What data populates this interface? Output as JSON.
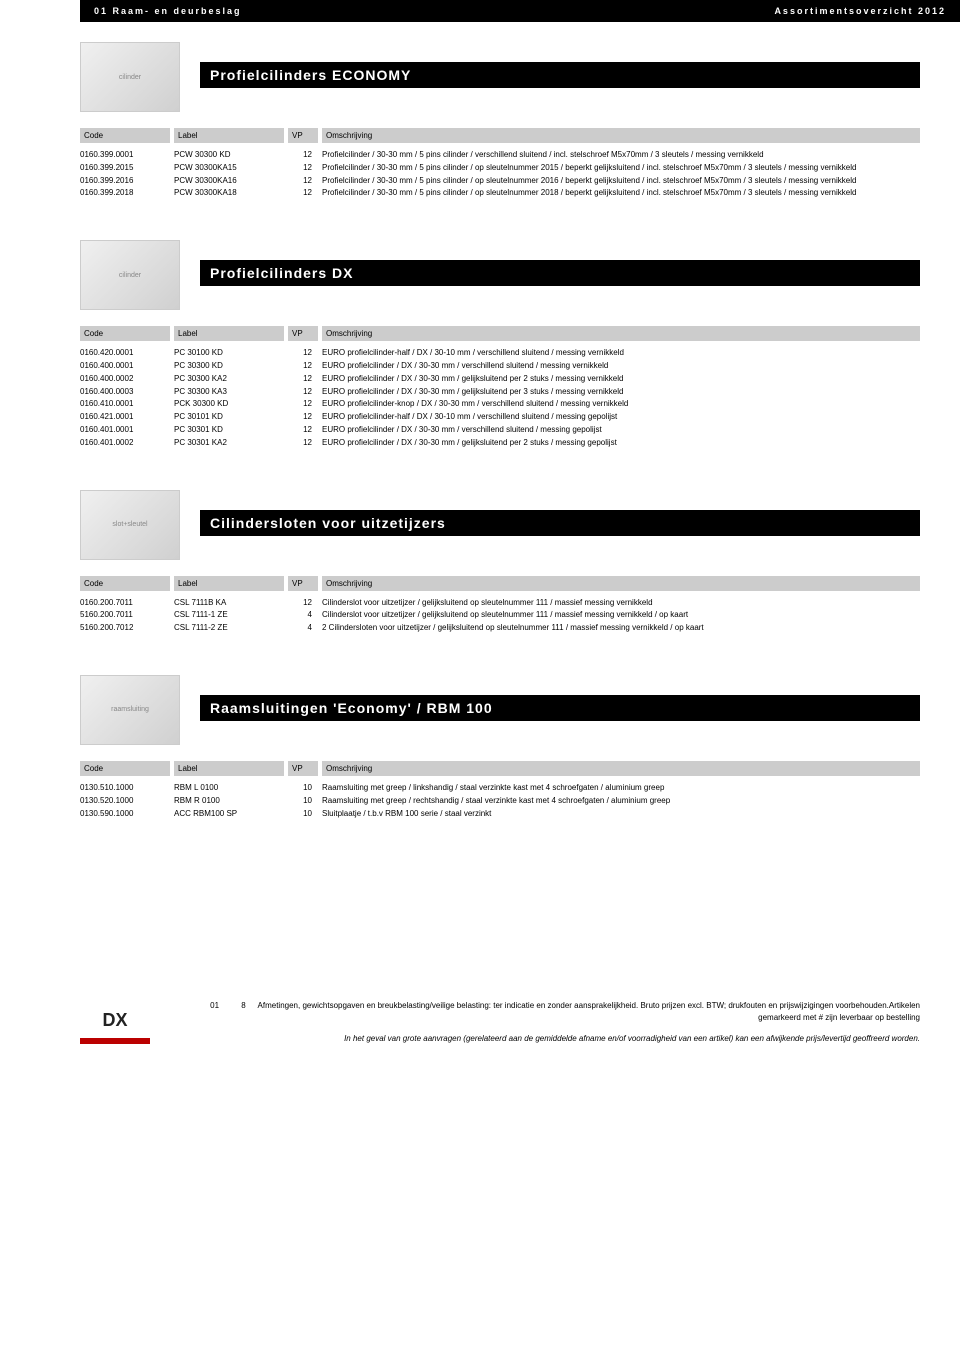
{
  "header": {
    "left": "01 Raam- en deurbeslag",
    "right": "Assortimentsoverzicht 2012"
  },
  "columns": {
    "code": "Code",
    "label": "Label",
    "vp": "VP",
    "desc": "Omschrijving"
  },
  "sections": [
    {
      "title": "Profielcilinders ECONOMY",
      "thumb": "cilinder",
      "rows": [
        {
          "code": "0160.399.0001",
          "label": "PCW 30300 KD",
          "qty": "12",
          "desc": "Profielcilinder / 30-30 mm / 5 pins cilinder / verschillend sluitend / incl. stelschroef M5x70mm / 3 sleutels / messing vernikkeld"
        },
        {
          "code": "0160.399.2015",
          "label": "PCW 30300KA15",
          "qty": "12",
          "desc": "Profielcilinder / 30-30 mm / 5 pins cilinder / op sleutelnummer 2015 / beperkt gelijksluitend / incl. stelschroef M5x70mm / 3 sleutels / messing vernikkeld"
        },
        {
          "code": "0160.399.2016",
          "label": "PCW 30300KA16",
          "qty": "12",
          "desc": "Profielcilinder / 30-30 mm / 5 pins cilinder / op sleutelnummer 2016 / beperkt gelijksluitend / incl. stelschroef M5x70mm / 3 sleutels / messing vernikkeld"
        },
        {
          "code": "0160.399.2018",
          "label": "PCW 30300KA18",
          "qty": "12",
          "desc": "Profielcilinder / 30-30 mm / 5 pins cilinder / op sleutelnummer 2018 / beperkt gelijksluitend / incl. stelschroef M5x70mm / 3 sleutels / messing vernikkeld"
        }
      ]
    },
    {
      "title": "Profielcilinders DX",
      "thumb": "cilinder",
      "rows": [
        {
          "code": "0160.420.0001",
          "label": "PC 30100 KD",
          "qty": "12",
          "desc": "EURO profielcilinder-half / DX / 30-10 mm / verschillend sluitend / messing vernikkeld"
        },
        {
          "code": "0160.400.0001",
          "label": "PC 30300 KD",
          "qty": "12",
          "desc": "EURO profielcilinder / DX / 30-30 mm / verschillend sluitend / messing vernikkeld"
        },
        {
          "code": "0160.400.0002",
          "label": "PC 30300 KA2",
          "qty": "12",
          "desc": "EURO profielcilinder / DX / 30-30 mm / gelijksluitend per 2 stuks / messing vernikkeld"
        },
        {
          "code": "0160.400.0003",
          "label": "PC 30300 KA3",
          "qty": "12",
          "desc": "EURO profielcilinder / DX / 30-30 mm / gelijksluitend per 3 stuks / messing vernikkeld"
        },
        {
          "code": "0160.410.0001",
          "label": "PCK 30300 KD",
          "qty": "12",
          "desc": "EURO profielcilinder-knop / DX / 30-30 mm / verschillend sluitend / messing vernikkeld"
        },
        {
          "code": "0160.421.0001",
          "label": "PC 30101 KD",
          "qty": "12",
          "desc": "EURO profielcilinder-half / DX / 30-10 mm / verschillend sluitend / messing gepolijst"
        },
        {
          "code": "0160.401.0001",
          "label": "PC 30301 KD",
          "qty": "12",
          "desc": "EURO profielcilinder / DX / 30-30 mm / verschillend sluitend / messing gepolijst"
        },
        {
          "code": "0160.401.0002",
          "label": "PC 30301 KA2",
          "qty": "12",
          "desc": "EURO profielcilinder / DX / 30-30 mm / gelijksluitend per 2 stuks / messing gepolijst"
        }
      ]
    },
    {
      "title": "Cilindersloten voor uitzetijzers",
      "thumb": "slot+sleutel",
      "rows": [
        {
          "code": "0160.200.7011",
          "label": "CSL 7111B KA",
          "qty": "12",
          "desc": "Cilinderslot voor uitzetijzer / gelijksluitend op sleutelnummer 111 / massief messing vernikkeld"
        },
        {
          "code": "5160.200.7011",
          "label": "CSL 7111-1 ZE",
          "qty": "4",
          "desc": "Cilinderslot voor uitzetijzer / gelijksluitend op sleutelnummer 111 / massief messing vernikkeld / op kaart"
        },
        {
          "code": "5160.200.7012",
          "label": "CSL 7111-2 ZE",
          "qty": "4",
          "desc": "2 Cilindersloten voor uitzetijzer / gelijksluitend op sleutelnummer 111 / massief messing vernikkeld / op kaart"
        }
      ]
    },
    {
      "title": "Raamsluitingen 'Economy' / RBM 100",
      "thumb": "raamsluiting",
      "rows": [
        {
          "code": "0130.510.1000",
          "label": "RBM L 0100",
          "qty": "10",
          "desc": "Raamsluiting met greep / linkshandig / staal verzinkte kast met 4 schroefgaten / aluminium greep"
        },
        {
          "code": "0130.520.1000",
          "label": "RBM R 0100",
          "qty": "10",
          "desc": "Raamsluiting met greep / rechtshandig / staal verzinkte kast met 4 schroefgaten / aluminium greep"
        },
        {
          "code": "0130.590.1000",
          "label": "ACC RBM100 SP",
          "qty": "10",
          "desc": "Sluitplaatje / t.b.v RBM 100 serie / staal verzinkt"
        }
      ]
    }
  ],
  "footer": {
    "logo": "DX",
    "chapter": "01",
    "page": "8",
    "disclaimer1": "Afmetingen, gewichtsopgaven en breukbelasting/veilige belasting: ter indicatie en zonder aansprakelijkheid. Bruto prijzen excl. BTW; drukfouten en prijswijzigingen voorbehouden.Artikelen gemarkeerd met # zijn leverbaar op bestelling",
    "disclaimer2": "In het geval van grote aanvragen (gerelateerd aan de gemiddelde afname en/of voorradigheid van een artikel) kan een afwijkende prijs/levertijd geoffreerd worden."
  }
}
